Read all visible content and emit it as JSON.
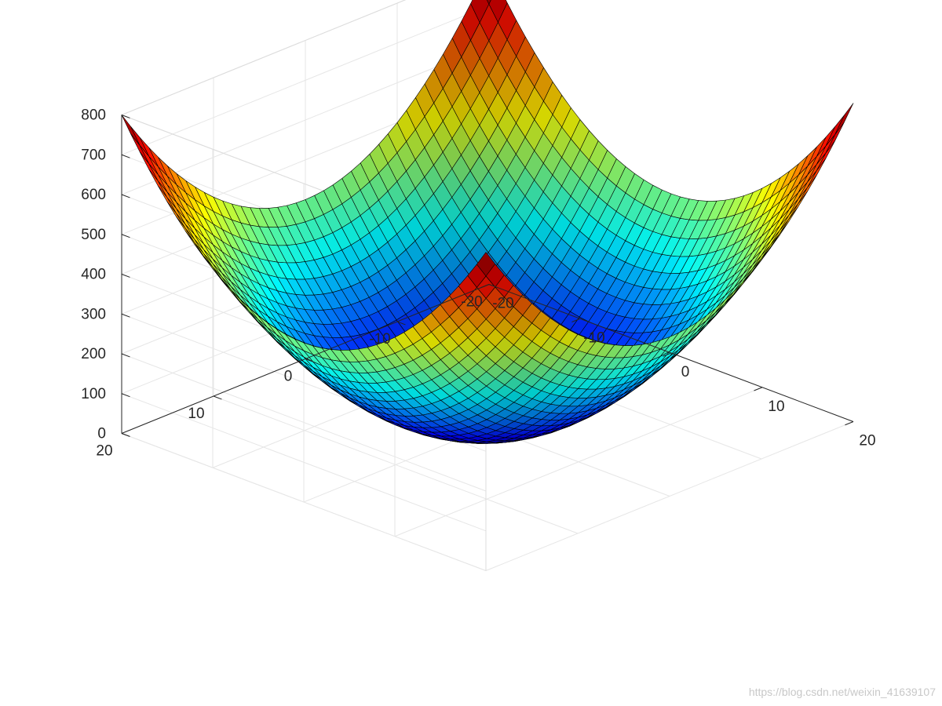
{
  "chart_data": {
    "type": "surface",
    "function": "z = x^2 + y^2",
    "title": "",
    "xlabel": "",
    "ylabel": "",
    "zlabel": "",
    "xlim": [
      -20,
      20
    ],
    "ylim": [
      -20,
      20
    ],
    "zlim": [
      0,
      800
    ],
    "mesh_step": 1,
    "x_ticks": [
      -20,
      -10,
      0,
      10,
      20
    ],
    "y_ticks": [
      -20,
      -10,
      0,
      10,
      20
    ],
    "z_ticks": [
      0,
      100,
      200,
      300,
      400,
      500,
      600,
      700,
      800
    ],
    "colormap": "jet",
    "edge_color": "#000000",
    "grid": true,
    "grid_color": "#e6e6e6",
    "axis_color": "#262626"
  },
  "watermark": "https://blog.csdn.net/weixin_41639107"
}
